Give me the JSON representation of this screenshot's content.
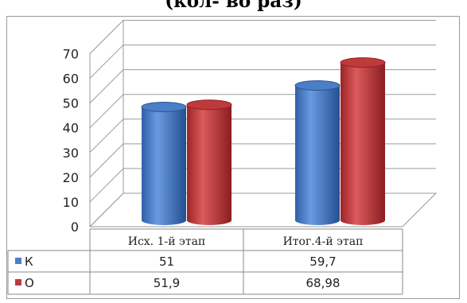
{
  "title": "(кол- во раз)",
  "chart_data": {
    "type": "bar",
    "style": "3d-cylinder",
    "title": "(кол- во раз)",
    "categories": [
      "Исх. 1-й этап",
      "Итог.4-й этап"
    ],
    "series": [
      {
        "name": "К",
        "values": [
          51,
          59.7
        ],
        "labels": [
          "51",
          "59,7"
        ],
        "color": "#4a7ec8"
      },
      {
        "name": "О",
        "values": [
          51.9,
          68.98
        ],
        "labels": [
          "51,9",
          "68,98"
        ],
        "color": "#c0393b"
      }
    ],
    "yticks": [
      "0",
      "10",
      "20",
      "30",
      "40",
      "50",
      "60",
      "70"
    ],
    "ylim": [
      0,
      70
    ],
    "grid": true,
    "data_table": true
  }
}
